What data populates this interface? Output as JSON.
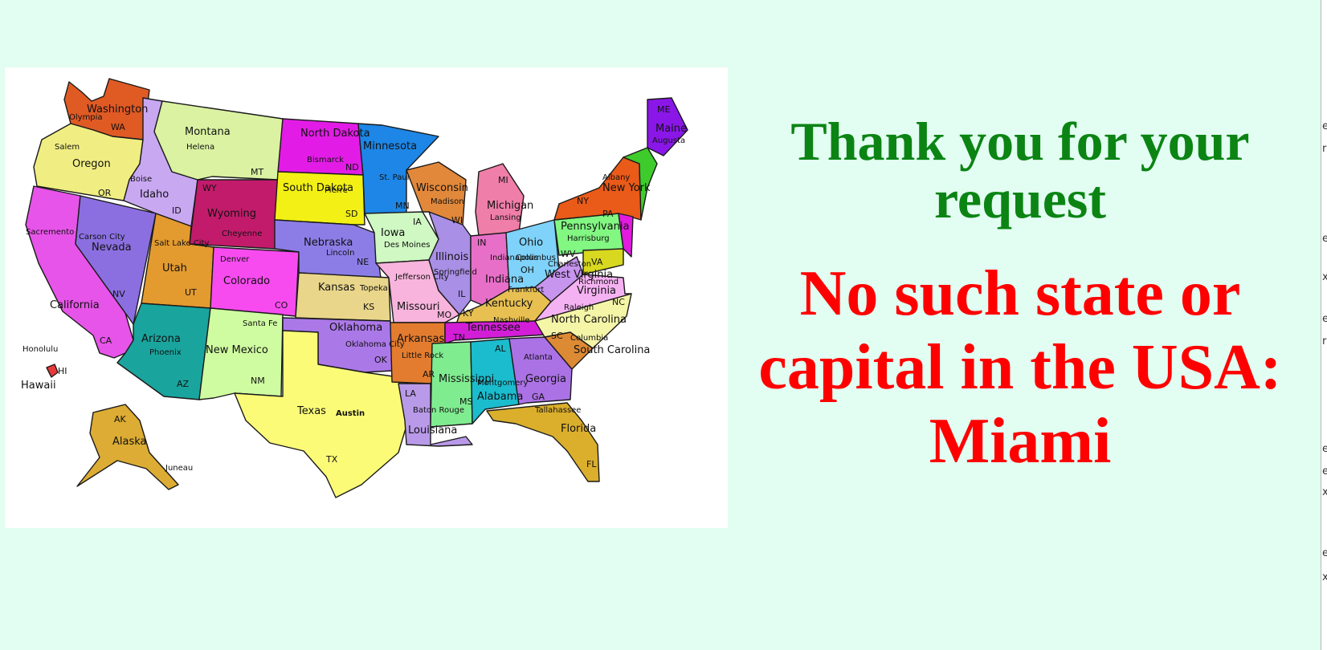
{
  "message": {
    "thank_you": "Thank you for your request",
    "error": "No such state or capital in the USA: Miami"
  },
  "colors": {
    "background": "#e2fdf1",
    "thank_you": "#0b8414",
    "error": "#ff0000"
  },
  "edge_glyphs": [
    "e",
    "r",
    "e",
    "x",
    "e",
    "r",
    "e",
    "e",
    "x",
    "e",
    "x"
  ],
  "map": {
    "states": [
      {
        "name": "Washington",
        "abbr": "WA",
        "capital": "Olympia",
        "color": "#e05a24"
      },
      {
        "name": "Oregon",
        "abbr": "OR",
        "capital": "Salem",
        "color": "#f0ee82"
      },
      {
        "name": "California",
        "abbr": "CA",
        "capital": "Sacremento",
        "color": "#e754e9"
      },
      {
        "name": "Nevada",
        "abbr": "NV",
        "capital": "Carson City",
        "color": "#8b6fe0"
      },
      {
        "name": "Idaho",
        "abbr": "ID",
        "capital": "Boise",
        "color": "#c9a8f2"
      },
      {
        "name": "Montana",
        "abbr": "MT",
        "capital": "Helena",
        "color": "#daf2a1"
      },
      {
        "name": "Wyoming",
        "abbr": "WY",
        "capital": "Cheyenne",
        "color": "#c21b6b"
      },
      {
        "name": "Utah",
        "abbr": "UT",
        "capital": "Salt Lake City",
        "color": "#e39a2f"
      },
      {
        "name": "Arizona",
        "abbr": "AZ",
        "capital": "Phoenix",
        "color": "#1aa49e"
      },
      {
        "name": "Colorado",
        "abbr": "CO",
        "capital": "Denver",
        "color": "#f74bf0"
      },
      {
        "name": "New Mexico",
        "abbr": "NM",
        "capital": "Santa Fe",
        "color": "#cffca1"
      },
      {
        "name": "North Dakota",
        "abbr": "ND",
        "capital": "Bismarck",
        "color": "#e21ce6"
      },
      {
        "name": "South Dakota",
        "abbr": "SD",
        "capital": "Pierre",
        "color": "#f2f014"
      },
      {
        "name": "Nebraska",
        "abbr": "NE",
        "capital": "Lincoln",
        "color": "#8c7de6"
      },
      {
        "name": "Kansas",
        "abbr": "KS",
        "capital": "Topeka",
        "color": "#e9d68a"
      },
      {
        "name": "Oklahoma",
        "abbr": "OK",
        "capital": "Oklahoma City",
        "color": "#ab78e8"
      },
      {
        "name": "Texas",
        "abbr": "TX",
        "capital": "Austin",
        "color": "#fbfb78"
      },
      {
        "name": "Minnesota",
        "abbr": "MN",
        "capital": "St. Paul",
        "color": "#1d86e6"
      },
      {
        "name": "Iowa",
        "abbr": "IA",
        "capital": "Des Moines",
        "color": "#cff8c2"
      },
      {
        "name": "Missouri",
        "abbr": "MO",
        "capital": "Jefferson City",
        "color": "#f8b4dc"
      },
      {
        "name": "Arkansas",
        "abbr": "AR",
        "capital": "Little Rock",
        "color": "#e37c2f"
      },
      {
        "name": "Louisiana",
        "abbr": "LA",
        "capital": "Baton Rouge",
        "color": "#b99ae8"
      },
      {
        "name": "Wisconsin",
        "abbr": "WI",
        "capital": "Madison",
        "color": "#e2883a"
      },
      {
        "name": "Illinois",
        "abbr": "IL",
        "capital": "Springfield",
        "color": "#a98fe6"
      },
      {
        "name": "Michigan",
        "abbr": "MI",
        "capital": "Lansing",
        "color": "#ef7ea8"
      },
      {
        "name": "Indiana",
        "abbr": "IN",
        "capital": "Indianapolis",
        "color": "#e76fc8"
      },
      {
        "name": "Ohio",
        "abbr": "OH",
        "capital": "Columbus",
        "color": "#7fd2fa"
      },
      {
        "name": "Kentucky",
        "abbr": "KY",
        "capital": "Frankfurt",
        "color": "#e8c052"
      },
      {
        "name": "Tennessee",
        "abbr": "TN",
        "capital": "Nashville",
        "color": "#d31ed8"
      },
      {
        "name": "Mississippi",
        "abbr": "MS",
        "capital": "",
        "color": "#80ec90"
      },
      {
        "name": "Alabama",
        "abbr": "AL",
        "capital": "Montgomery",
        "color": "#1bbcce"
      },
      {
        "name": "Georgia",
        "abbr": "GA",
        "capital": "Atlanta",
        "color": "#ab72e6"
      },
      {
        "name": "Florida",
        "abbr": "FL",
        "capital": "Tallahassee",
        "color": "#dbaf2c"
      },
      {
        "name": "South Carolina",
        "abbr": "SC",
        "capital": "Columbia",
        "color": "#dd8a35"
      },
      {
        "name": "North Carolina",
        "abbr": "NC",
        "capital": "Raleigh",
        "color": "#f5f5a8"
      },
      {
        "name": "Virginia",
        "abbr": "VA",
        "capital": "Richmond",
        "color": "#f5b2f2"
      },
      {
        "name": "West Virginia",
        "abbr": "WV",
        "capital": "Charleston",
        "color": "#c794ee"
      },
      {
        "name": "Pennsylvania",
        "abbr": "PA",
        "capital": "Harrisburg",
        "color": "#82f782"
      },
      {
        "name": "New York",
        "abbr": "NY",
        "capital": "Albany",
        "color": "#ea5a18"
      },
      {
        "name": "Maine",
        "abbr": "ME",
        "capital": "Augusta",
        "color": "#8a17e8"
      },
      {
        "name": "Hawaii",
        "abbr": "HI",
        "capital": "Honolulu",
        "color": "#e83a3a"
      },
      {
        "name": "Alaska",
        "abbr": "AK",
        "capital": "Juneau",
        "color": "#dcac34"
      }
    ]
  }
}
